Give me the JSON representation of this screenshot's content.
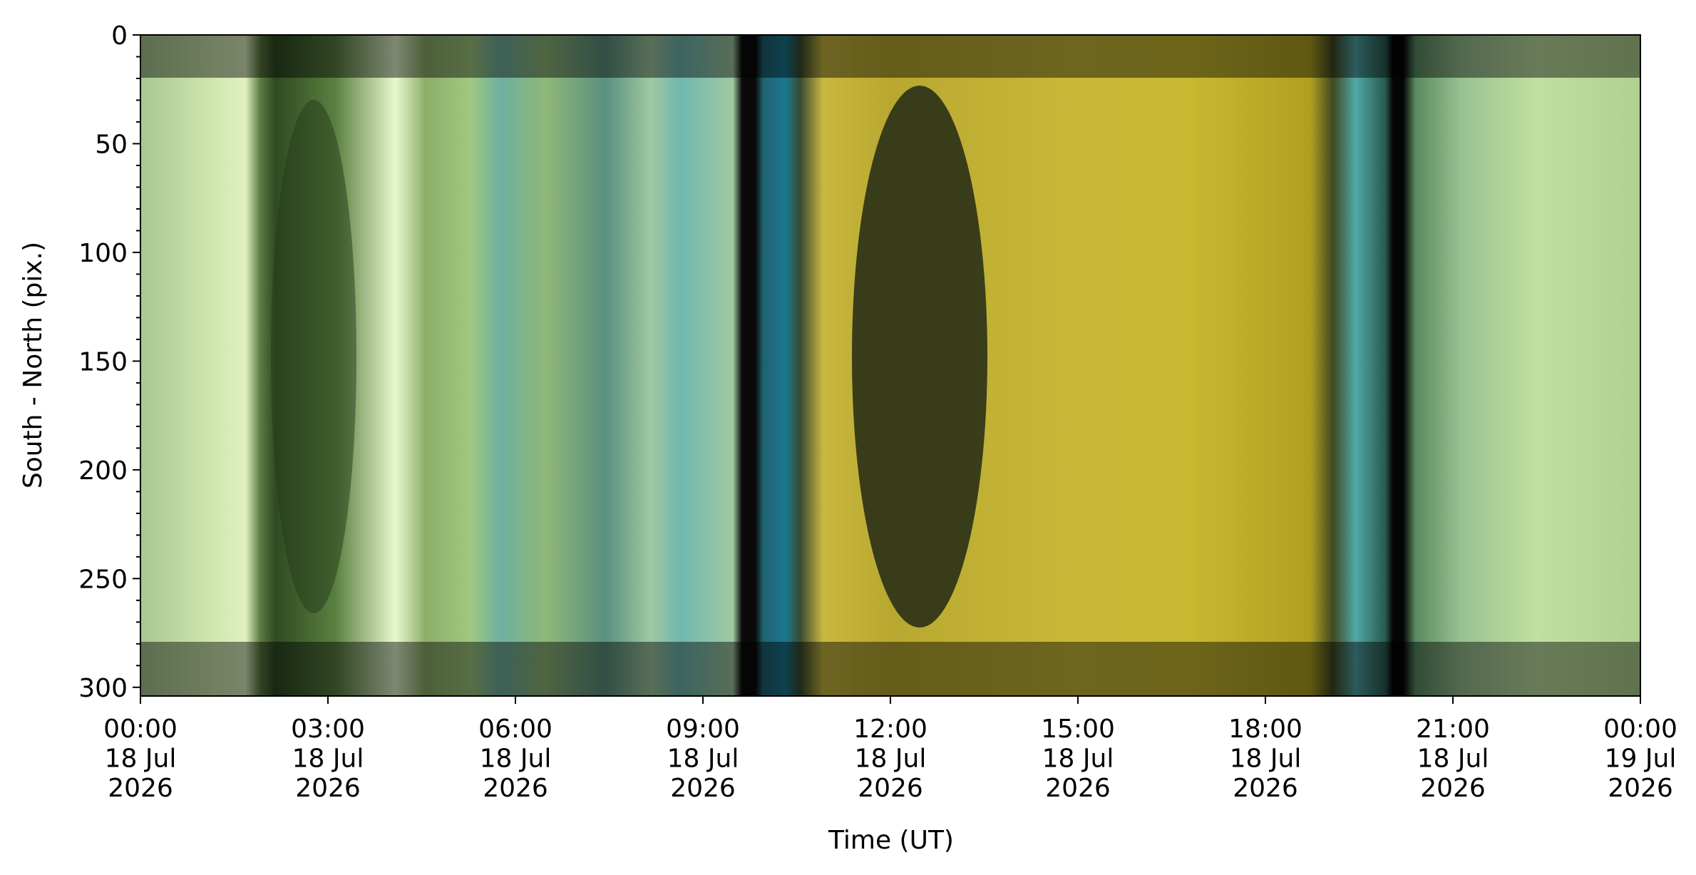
{
  "chart_data": {
    "type": "image",
    "x_label": "Time (UT)",
    "y_label": "South - North (pix.)",
    "xlim": [
      "2026-07-18T00:00Z",
      "2026-07-19T00:00Z"
    ],
    "xticks": [
      {
        "value": "2026-07-18T00:00Z",
        "label": "00:00\n18 Jul\n2026"
      },
      {
        "value": "2026-07-18T03:00Z",
        "label": "03:00\n18 Jul\n2026"
      },
      {
        "value": "2026-07-18T06:00Z",
        "label": "06:00\n18 Jul\n2026"
      },
      {
        "value": "2026-07-18T09:00Z",
        "label": "09:00\n18 Jul\n2026"
      },
      {
        "value": "2026-07-18T12:00Z",
        "label": "12:00\n18 Jul\n2026"
      },
      {
        "value": "2026-07-18T15:00Z",
        "label": "15:00\n18 Jul\n2026"
      },
      {
        "value": "2026-07-18T18:00Z",
        "label": "18:00\n18 Jul\n2026"
      },
      {
        "value": "2026-07-18T21:00Z",
        "label": "21:00\n18 Jul\n2026"
      },
      {
        "value": "2026-07-19T00:00Z",
        "label": "00:00\n19 Jul\n2026"
      }
    ],
    "ylim": [
      304,
      0
    ],
    "yticks": [
      0,
      50,
      100,
      150,
      200,
      250,
      300
    ],
    "yminorticks": [
      10,
      20,
      30,
      40,
      60,
      70,
      80,
      90,
      110,
      120,
      130,
      140,
      160,
      170,
      180,
      190,
      210,
      220,
      230,
      240,
      260,
      270,
      280,
      290
    ]
  }
}
